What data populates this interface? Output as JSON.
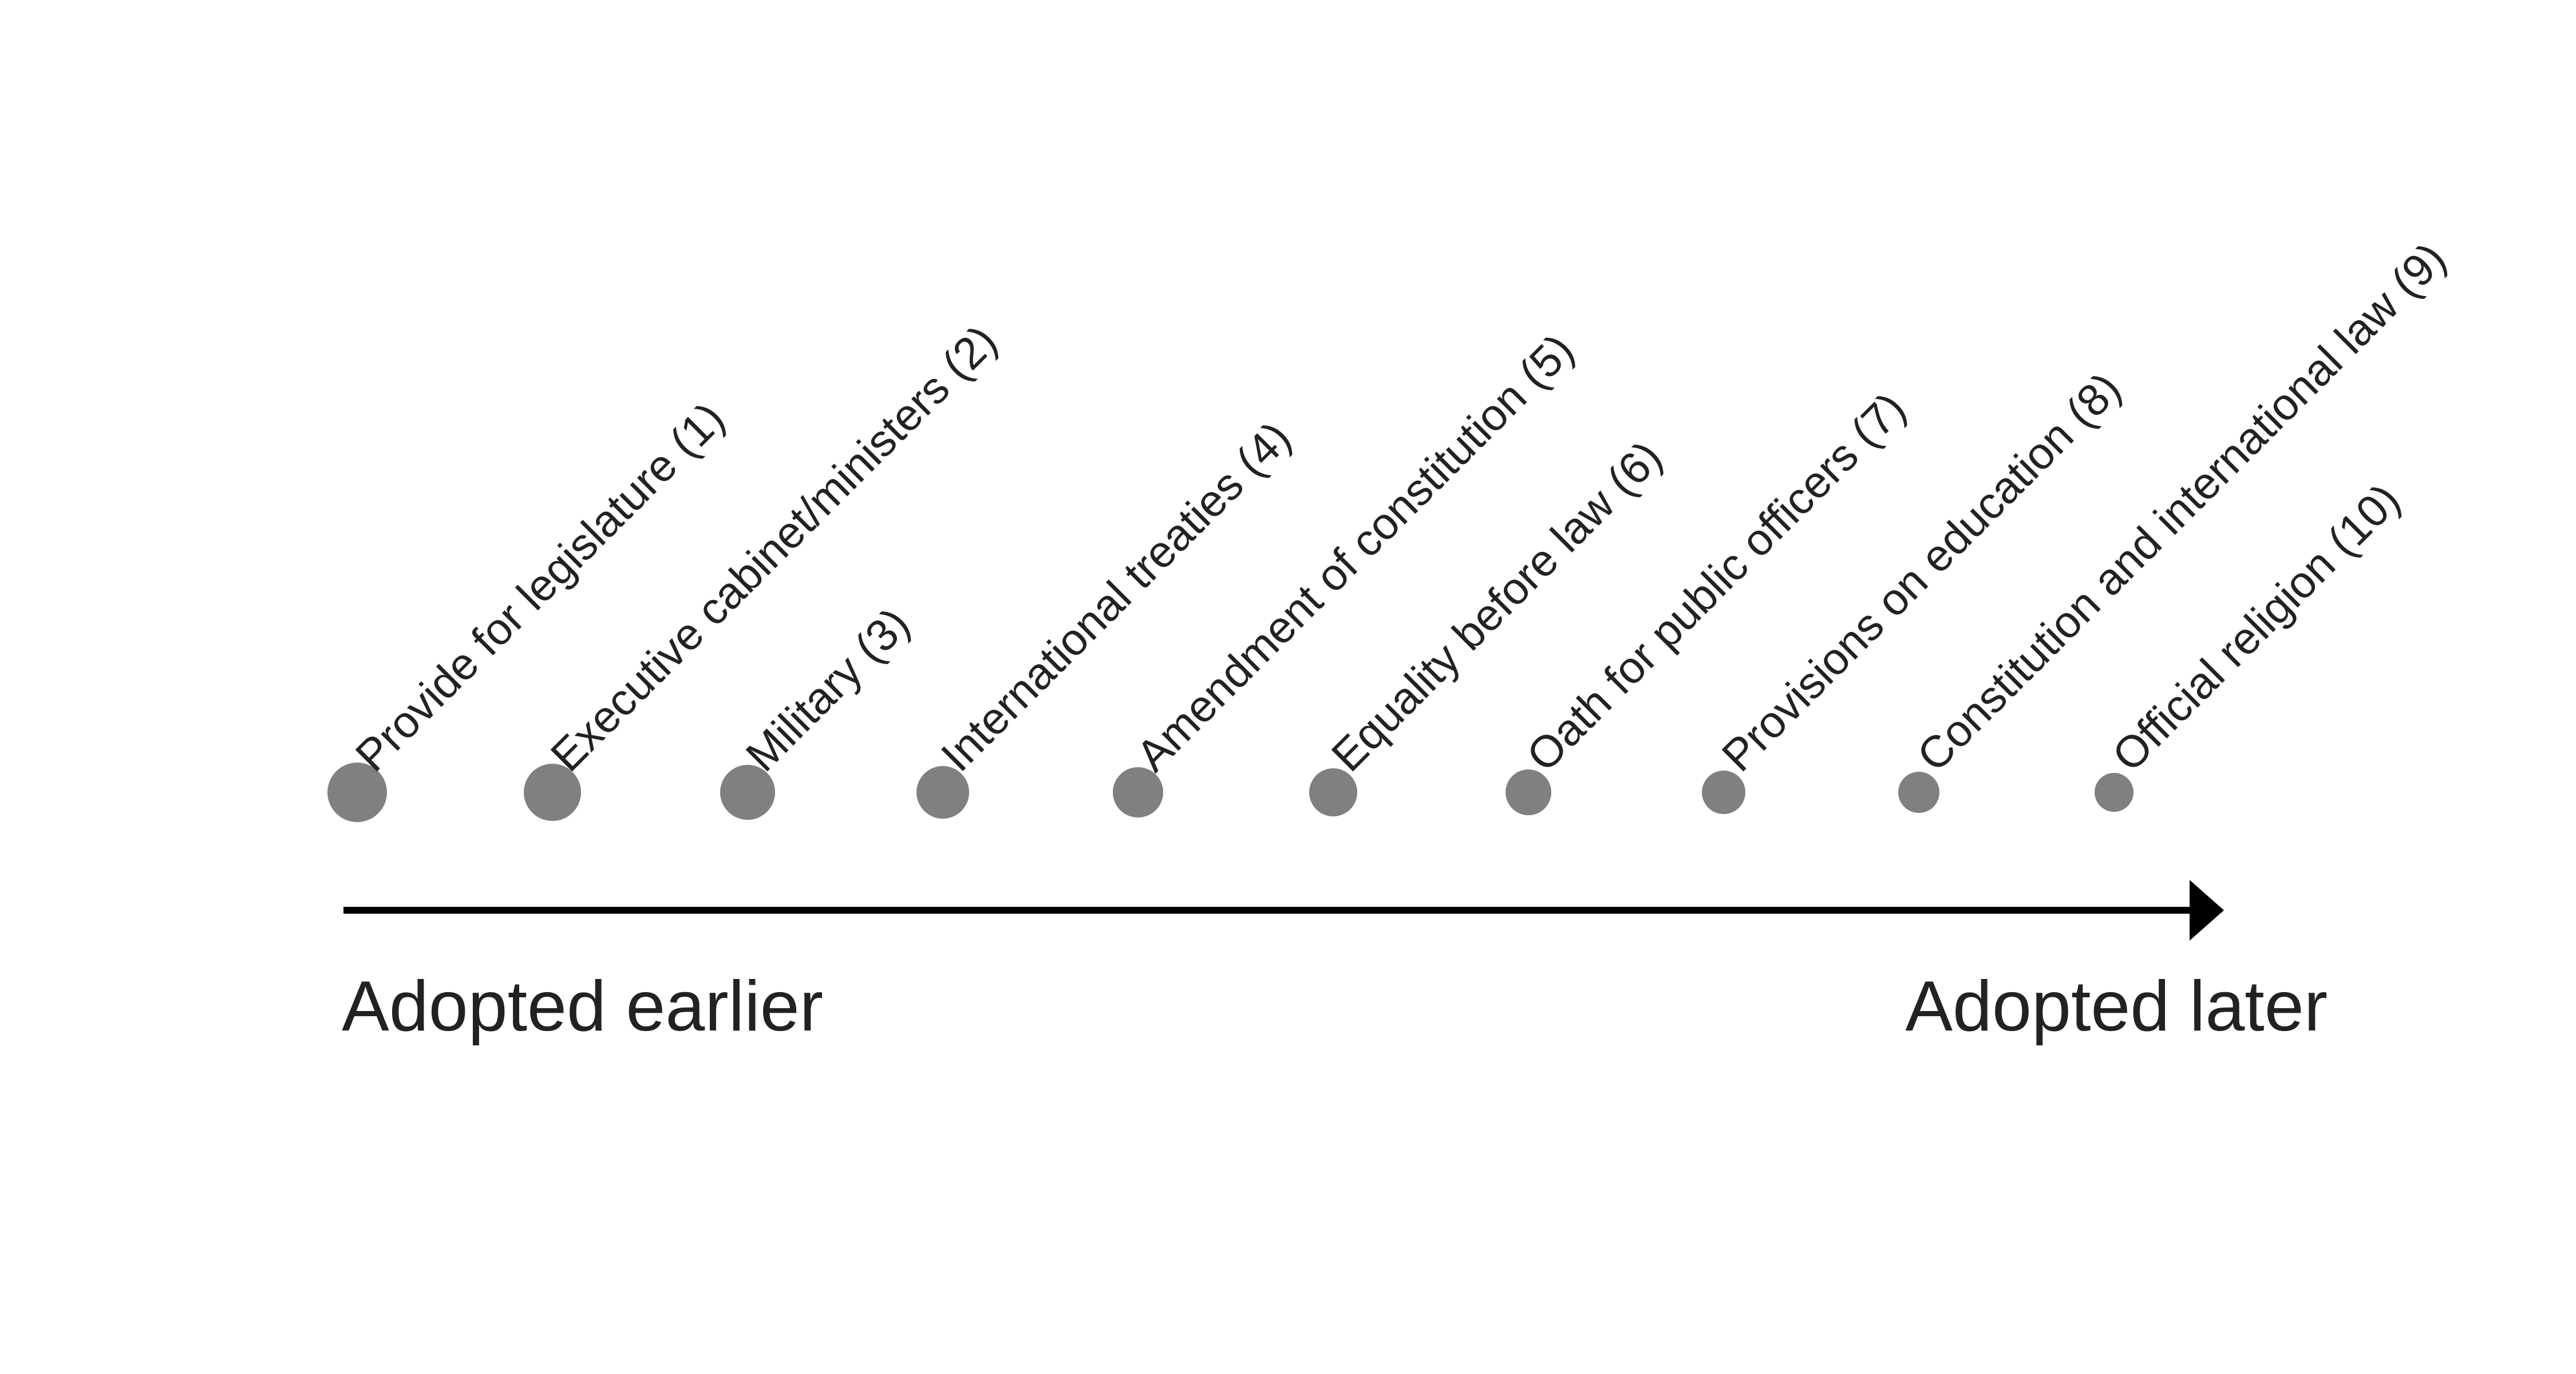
{
  "diagram": {
    "items": [
      {
        "label": "Provide for legislature (1)",
        "rank": 1
      },
      {
        "label": "Executive cabinet/ministers (2)",
        "rank": 2
      },
      {
        "label": "Military (3)",
        "rank": 3
      },
      {
        "label": "International treaties (4)",
        "rank": 4
      },
      {
        "label": "Amendment of constitution (5)",
        "rank": 5
      },
      {
        "label": "Equality before law (6)",
        "rank": 6
      },
      {
        "label": "Oath for public officers (7)",
        "rank": 7
      },
      {
        "label": "Provisions on education (8)",
        "rank": 8
      },
      {
        "label": "Constitution and international law (9)",
        "rank": 9
      },
      {
        "label": "Official religion (10)",
        "rank": 10
      }
    ],
    "axis": {
      "start_label": "Adopted earlier",
      "end_label": "Adopted later"
    },
    "colors": {
      "dot": "#808080",
      "text": "#222222",
      "axis": "#000000"
    }
  }
}
